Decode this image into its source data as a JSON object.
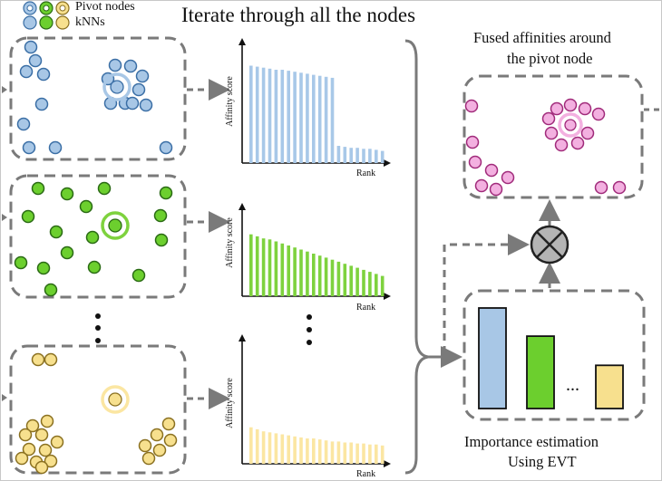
{
  "title": "Iterate through all the nodes",
  "legend": {
    "pivot_label": "Pivot nodes",
    "knn_label": "kNNs"
  },
  "colors": {
    "blue_fill": "#a8c7e6",
    "blue_stroke": "#3a6ea5",
    "green_fill": "#6ccf2e",
    "green_stroke": "#2a6a14",
    "yellow_fill": "#f7e08e",
    "yellow_stroke": "#8a7020",
    "pink_fill": "#f3b0e0",
    "pink_stroke": "#a02a7a",
    "box_dash": "#7a7a7a"
  },
  "charts": [
    {
      "ylabel": "Affinity score",
      "xlabel": "Rank"
    },
    {
      "ylabel": "Affinity score",
      "xlabel": "Rank"
    },
    {
      "ylabel": "Affinity score",
      "xlabel": "Rank"
    }
  ],
  "chart_data": [
    {
      "type": "bar",
      "ylabel": "Affinity score",
      "xlabel": "Rank",
      "color": "#a8c8e8",
      "values": [
        0.96,
        0.95,
        0.94,
        0.93,
        0.92,
        0.92,
        0.91,
        0.9,
        0.89,
        0.88,
        0.87,
        0.86,
        0.85,
        0.84,
        0.17,
        0.16,
        0.15,
        0.15,
        0.14,
        0.14,
        0.13,
        0.12
      ]
    },
    {
      "type": "bar",
      "ylabel": "Affinity score",
      "xlabel": "Rank",
      "color": "#7ed23e",
      "values": [
        0.61,
        0.59,
        0.57,
        0.56,
        0.54,
        0.52,
        0.5,
        0.48,
        0.46,
        0.44,
        0.42,
        0.4,
        0.38,
        0.36,
        0.34,
        0.32,
        0.3,
        0.28,
        0.26,
        0.24,
        0.22,
        0.2
      ]
    },
    {
      "type": "bar",
      "ylabel": "Affinity score",
      "xlabel": "Rank",
      "color": "#fbe6a2",
      "values": [
        0.36,
        0.34,
        0.32,
        0.31,
        0.3,
        0.29,
        0.28,
        0.27,
        0.26,
        0.25,
        0.25,
        0.24,
        0.23,
        0.22,
        0.22,
        0.21,
        0.21,
        0.2,
        0.2,
        0.19,
        0.19,
        0.18
      ]
    },
    {
      "type": "bar",
      "title": "Importance estimation Using EVT",
      "categories": [
        "blue",
        "green",
        "...",
        "yellow"
      ],
      "values": [
        1.0,
        0.72,
        null,
        0.43
      ]
    }
  ],
  "importance": {
    "label_line1": "Importance estimation",
    "label_line2": "Using EVT",
    "dots": "..."
  },
  "fused": {
    "label_line1": "Fused affinities around",
    "label_line2": "the pivot node"
  }
}
